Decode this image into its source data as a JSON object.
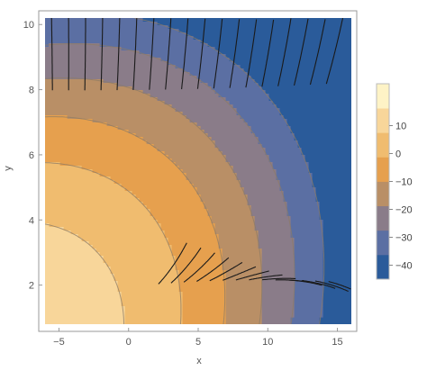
{
  "chart_data": {
    "type": "contour",
    "title": "",
    "xlabel": "x",
    "ylabel": "y",
    "xlim": [
      -6,
      16
    ],
    "ylim": [
      0.8,
      10.2
    ],
    "x_ticks": [
      -5,
      0,
      5,
      10,
      15
    ],
    "y_ticks": [
      2,
      4,
      6,
      8,
      10
    ],
    "grid": false,
    "legend_position": "right",
    "legend_ticks": [
      10,
      0,
      -10,
      -20,
      -30,
      -40
    ],
    "contour_levels": [
      -45,
      -40,
      -30,
      -20,
      -10,
      0,
      10,
      20
    ],
    "band_colors": [
      "#2a5b9a",
      "#5b6fa3",
      "#8a7c89",
      "#b98f66",
      "#e6a04e",
      "#f0bc6f",
      "#f8d69a",
      "#fef3c6"
    ],
    "stream_lines": true
  }
}
